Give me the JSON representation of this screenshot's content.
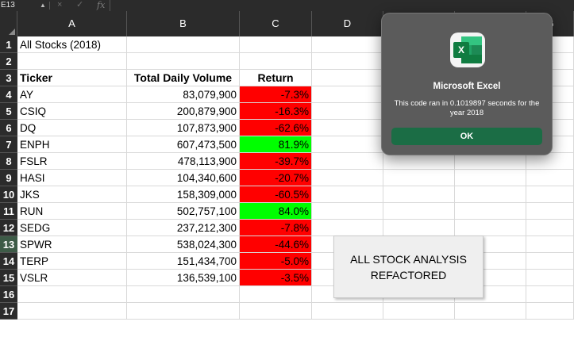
{
  "formula_bar": {
    "name_box": "E13",
    "cancel_icon": "×",
    "enter_icon": "✓",
    "fx_label": "fx"
  },
  "columns": [
    "A",
    "B",
    "C",
    "D",
    "E",
    "F",
    "G"
  ],
  "rows": [
    "1",
    "2",
    "3",
    "4",
    "5",
    "6",
    "7",
    "8",
    "9",
    "10",
    "11",
    "12",
    "13",
    "14",
    "15",
    "16",
    "17"
  ],
  "sheet": {
    "title": "All Stocks (2018)",
    "headers": {
      "ticker": "Ticker",
      "volume": "Total Daily Volume",
      "return": "Return"
    },
    "data": [
      {
        "ticker": "AY",
        "volume": "83,079,900",
        "return": "-7.3%",
        "status": "negative"
      },
      {
        "ticker": "CSIQ",
        "volume": "200,879,900",
        "return": "-16.3%",
        "status": "negative"
      },
      {
        "ticker": "DQ",
        "volume": "107,873,900",
        "return": "-62.6%",
        "status": "negative"
      },
      {
        "ticker": "ENPH",
        "volume": "607,473,500",
        "return": "81.9%",
        "status": "positive"
      },
      {
        "ticker": "FSLR",
        "volume": "478,113,900",
        "return": "-39.7%",
        "status": "negative"
      },
      {
        "ticker": "HASI",
        "volume": "104,340,600",
        "return": "-20.7%",
        "status": "negative"
      },
      {
        "ticker": "JKS",
        "volume": "158,309,000",
        "return": "-60.5%",
        "status": "negative"
      },
      {
        "ticker": "RUN",
        "volume": "502,757,100",
        "return": "84.0%",
        "status": "positive"
      },
      {
        "ticker": "SEDG",
        "volume": "237,212,300",
        "return": "-7.8%",
        "status": "negative"
      },
      {
        "ticker": "SPWR",
        "volume": "538,024,300",
        "return": "-44.6%",
        "status": "negative"
      },
      {
        "ticker": "TERP",
        "volume": "151,434,700",
        "return": "-5.0%",
        "status": "negative"
      },
      {
        "ticker": "VSLR",
        "volume": "136,539,100",
        "return": "-3.5%",
        "status": "negative"
      }
    ]
  },
  "macro_button": {
    "line1": "ALL STOCK ANALYSIS",
    "line2": "REFACTORED"
  },
  "dialog": {
    "app_icon": "excel-icon",
    "icon_letter": "X",
    "title": "Microsoft Excel",
    "message": "This code ran in 0.1019897 seconds for the year 2018",
    "ok_label": "OK"
  },
  "colors": {
    "negative": "#ff0000",
    "positive": "#00ff00",
    "header_bg": "#2b2b2b",
    "ok_button": "#1b6d45"
  }
}
